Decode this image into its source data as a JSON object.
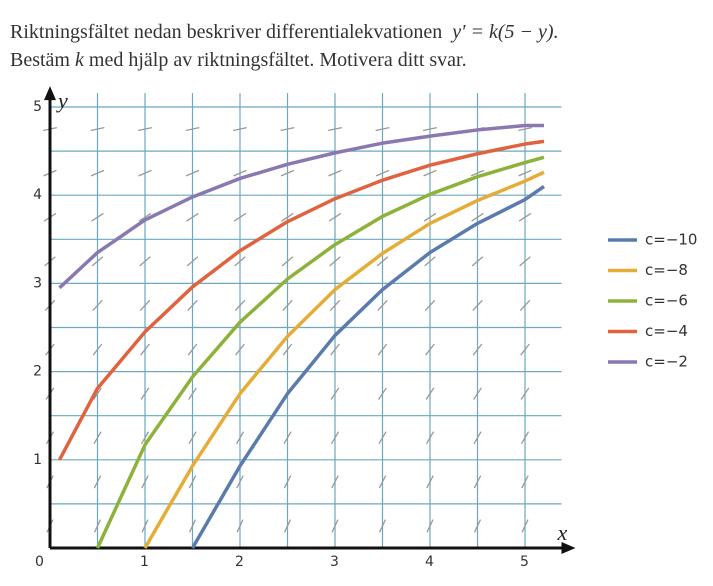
{
  "question": {
    "line1": "Riktningsfältet nedan beskriver differentialekvationen",
    "equation": "y′ = k(5 − y).",
    "line2": [
      "Bestäm",
      "k",
      "med hjälp av riktningsfältet. Motivera ditt svar."
    ]
  },
  "chart_data": {
    "type": "line",
    "xlabel": "x",
    "ylabel": "y",
    "x": [
      0.1,
      0.5,
      1,
      1.5,
      2,
      2.5,
      3,
      3.5,
      4,
      4.5,
      5,
      5.2
    ],
    "series": [
      {
        "name": "c=−10",
        "color": "#5a7bab",
        "values": [
          null,
          null,
          null,
          0,
          0.93,
          1.75,
          2.41,
          2.93,
          3.35,
          3.68,
          3.95,
          4.1
        ]
      },
      {
        "name": "c=−8",
        "color": "#e5ad37",
        "values": [
          null,
          null,
          0,
          0.93,
          1.75,
          2.4,
          2.93,
          3.34,
          3.68,
          3.94,
          4.16,
          4.26
        ]
      },
      {
        "name": "c=−6",
        "color": "#8db23a",
        "values": [
          null,
          0,
          1.17,
          1.94,
          2.56,
          3.05,
          3.44,
          3.76,
          4.01,
          4.21,
          4.37,
          4.43
        ]
      },
      {
        "name": "c=−4",
        "color": "#e0623f",
        "values": [
          1.0,
          1.81,
          2.45,
          2.96,
          3.37,
          3.7,
          3.96,
          4.17,
          4.34,
          4.47,
          4.58,
          4.61
        ]
      },
      {
        "name": "c=−2",
        "color": "#8a78b1",
        "values": [
          2.95,
          3.35,
          3.72,
          3.98,
          4.19,
          4.35,
          4.48,
          4.59,
          4.67,
          4.74,
          4.79,
          4.79
        ]
      }
    ],
    "xlim": [
      0,
      5.3
    ],
    "ylim": [
      0,
      5.1
    ],
    "xticks": [
      0,
      1,
      2,
      3,
      4,
      5
    ],
    "yticks": [
      1,
      2,
      3,
      4,
      5
    ],
    "grid": true
  }
}
